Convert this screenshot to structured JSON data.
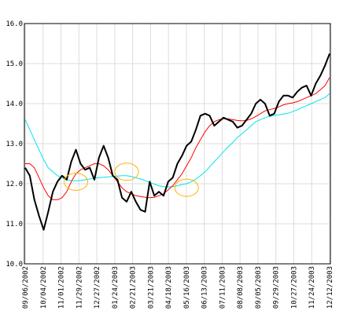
{
  "chart_data": {
    "type": "line",
    "title": "",
    "xlabel": "",
    "ylabel": "",
    "ylim": [
      10.0,
      16.0
    ],
    "grid": true,
    "x_tick_labels": [
      "09/06/2002",
      "10/04/2002",
      "11/01/2002",
      "11/29/2002",
      "12/27/2002",
      "01/24/2003",
      "02/21/2003",
      "03/21/2003",
      "04/18/2003",
      "05/16/2003",
      "06/13/2003",
      "07/11/2003",
      "08/08/2003",
      "09/05/2003",
      "09/29/2003",
      "10/27/2003",
      "11/24/2003",
      "12/12/2003"
    ],
    "y_tick_labels": [
      "10.0",
      "11.0",
      "12.0",
      "13.0",
      "14.0",
      "15.0",
      "16.0"
    ],
    "x": [
      "09/06/2002",
      "09/13/2002",
      "09/20/2002",
      "09/27/2002",
      "10/04/2002",
      "10/11/2002",
      "10/18/2002",
      "10/25/2002",
      "11/01/2002",
      "11/08/2002",
      "11/15/2002",
      "11/22/2002",
      "11/29/2002",
      "12/06/2002",
      "12/13/2002",
      "12/20/2002",
      "12/27/2002",
      "01/03/2003",
      "01/10/2003",
      "01/17/2003",
      "01/24/2003",
      "01/31/2003",
      "02/07/2003",
      "02/14/2003",
      "02/21/2003",
      "02/28/2003",
      "03/07/2003",
      "03/14/2003",
      "03/21/2003",
      "03/28/2003",
      "04/04/2003",
      "04/11/2003",
      "04/18/2003",
      "04/25/2003",
      "05/02/2003",
      "05/09/2003",
      "05/16/2003",
      "05/23/2003",
      "05/30/2003",
      "06/06/2003",
      "06/13/2003",
      "06/20/2003",
      "06/27/2003",
      "07/04/2003",
      "07/11/2003",
      "07/18/2003",
      "07/25/2003",
      "08/01/2003",
      "08/08/2003",
      "08/15/2003",
      "08/22/2003",
      "08/29/2003",
      "09/05/2003",
      "09/12/2003",
      "09/19/2003",
      "09/29/2003",
      "10/03/2003",
      "10/10/2003",
      "10/17/2003",
      "10/27/2003",
      "10/31/2003",
      "11/07/2003",
      "11/14/2003",
      "11/24/2003",
      "11/28/2003",
      "12/05/2003",
      "12/12/2003"
    ],
    "series": [
      {
        "color": "#000000",
        "width": 2,
        "values": [
          12.4,
          12.2,
          11.6,
          11.2,
          10.85,
          11.3,
          11.8,
          12.05,
          12.2,
          12.1,
          12.55,
          12.85,
          12.5,
          12.35,
          12.4,
          12.1,
          12.65,
          12.95,
          12.65,
          12.2,
          12.1,
          11.65,
          11.55,
          11.8,
          11.55,
          11.35,
          11.3,
          12.05,
          11.7,
          11.8,
          11.7,
          12.05,
          12.15,
          12.5,
          12.7,
          12.95,
          13.05,
          13.35,
          13.7,
          13.75,
          13.7,
          13.45,
          13.55,
          13.65,
          13.6,
          13.55,
          13.4,
          13.45,
          13.6,
          13.75,
          14.0,
          14.1,
          14.0,
          13.7,
          13.75,
          14.05,
          14.2,
          14.2,
          14.15,
          14.3,
          14.4,
          14.45,
          14.2,
          14.5,
          14.7,
          14.95,
          15.25
        ]
      },
      {
        "color": "#ff0000",
        "width": 1,
        "values": [
          12.5,
          12.5,
          12.4,
          12.15,
          11.9,
          11.7,
          11.6,
          11.6,
          11.65,
          11.8,
          12.05,
          12.25,
          12.35,
          12.4,
          12.45,
          12.5,
          12.5,
          12.45,
          12.35,
          12.2,
          12.05,
          11.9,
          11.8,
          11.75,
          11.7,
          11.68,
          11.66,
          11.65,
          11.66,
          11.7,
          11.75,
          11.85,
          11.95,
          12.1,
          12.25,
          12.45,
          12.65,
          12.9,
          13.1,
          13.3,
          13.45,
          13.55,
          13.6,
          13.62,
          13.62,
          13.6,
          13.58,
          13.57,
          13.58,
          13.62,
          13.68,
          13.75,
          13.82,
          13.85,
          13.88,
          13.92,
          13.97,
          14.0,
          14.02,
          14.05,
          14.1,
          14.15,
          14.2,
          14.25,
          14.35,
          14.45,
          14.65
        ]
      },
      {
        "color": "#00e5ee",
        "width": 1,
        "values": [
          13.6,
          13.35,
          13.1,
          12.85,
          12.6,
          12.4,
          12.3,
          12.2,
          12.15,
          12.1,
          12.08,
          12.07,
          12.08,
          12.1,
          12.12,
          12.14,
          12.15,
          12.16,
          12.17,
          12.18,
          12.19,
          12.2,
          12.2,
          12.18,
          12.15,
          12.12,
          12.08,
          12.03,
          11.99,
          11.95,
          11.93,
          11.92,
          11.93,
          11.95,
          11.98,
          12.0,
          12.05,
          12.12,
          12.2,
          12.3,
          12.42,
          12.55,
          12.67,
          12.8,
          12.92,
          13.03,
          13.15,
          13.25,
          13.35,
          13.45,
          13.55,
          13.6,
          13.65,
          13.68,
          13.7,
          13.72,
          13.74,
          13.76,
          13.8,
          13.85,
          13.9,
          13.95,
          14.0,
          14.05,
          14.1,
          14.15,
          14.25
        ]
      }
    ],
    "annotations": [
      {
        "shape": "ellipse",
        "color": "#ffb300",
        "x": "11/22/2002",
        "y": 12.05
      },
      {
        "shape": "ellipse",
        "color": "#ffb300",
        "x": "02/07/2003",
        "y": 12.3
      },
      {
        "shape": "ellipse",
        "color": "#ffb300",
        "x": "05/09/2003",
        "y": 11.9
      }
    ]
  }
}
